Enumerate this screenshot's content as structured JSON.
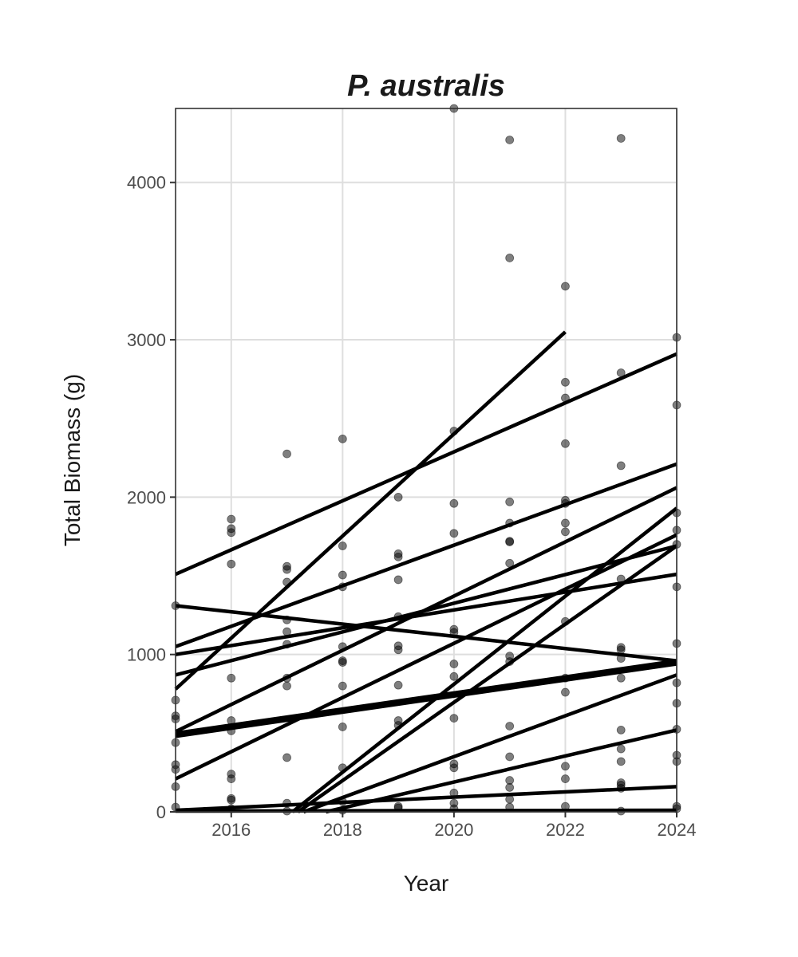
{
  "chart_data": {
    "type": "scatter",
    "title": "P. australis",
    "xlabel": "Year",
    "ylabel": "Total Biomass (g)",
    "xlim": [
      2015,
      2024
    ],
    "ylim": [
      0,
      4470
    ],
    "x_ticks": [
      2016,
      2018,
      2020,
      2022,
      2024
    ],
    "y_ticks": [
      0,
      1000,
      2000,
      3000,
      4000
    ],
    "grid": true,
    "legend": "none",
    "points": [
      {
        "x": 2015,
        "y": 1310
      },
      {
        "x": 2015,
        "y": 710
      },
      {
        "x": 2015,
        "y": 610
      },
      {
        "x": 2015,
        "y": 590
      },
      {
        "x": 2015,
        "y": 440
      },
      {
        "x": 2015,
        "y": 300
      },
      {
        "x": 2015,
        "y": 270
      },
      {
        "x": 2015,
        "y": 160
      },
      {
        "x": 2015,
        "y": 30
      },
      {
        "x": 2016,
        "y": 1860
      },
      {
        "x": 2016,
        "y": 1800
      },
      {
        "x": 2016,
        "y": 1775
      },
      {
        "x": 2016,
        "y": 1575
      },
      {
        "x": 2016,
        "y": 850
      },
      {
        "x": 2016,
        "y": 580
      },
      {
        "x": 2016,
        "y": 515
      },
      {
        "x": 2016,
        "y": 240
      },
      {
        "x": 2016,
        "y": 210
      },
      {
        "x": 2016,
        "y": 85
      },
      {
        "x": 2016,
        "y": 75
      },
      {
        "x": 2016,
        "y": 20
      },
      {
        "x": 2017,
        "y": 2275
      },
      {
        "x": 2017,
        "y": 1560
      },
      {
        "x": 2017,
        "y": 1540
      },
      {
        "x": 2017,
        "y": 1460
      },
      {
        "x": 2017,
        "y": 1220
      },
      {
        "x": 2017,
        "y": 1145
      },
      {
        "x": 2017,
        "y": 1065
      },
      {
        "x": 2017,
        "y": 850
      },
      {
        "x": 2017,
        "y": 800
      },
      {
        "x": 2017,
        "y": 345
      },
      {
        "x": 2017,
        "y": 55
      },
      {
        "x": 2017,
        "y": 5
      },
      {
        "x": 2018,
        "y": 2370
      },
      {
        "x": 2018,
        "y": 1690
      },
      {
        "x": 2018,
        "y": 1505
      },
      {
        "x": 2018,
        "y": 1430
      },
      {
        "x": 2018,
        "y": 1050
      },
      {
        "x": 2018,
        "y": 960
      },
      {
        "x": 2018,
        "y": 950
      },
      {
        "x": 2018,
        "y": 800
      },
      {
        "x": 2018,
        "y": 540
      },
      {
        "x": 2018,
        "y": 280
      },
      {
        "x": 2018,
        "y": 65
      },
      {
        "x": 2018,
        "y": 10
      },
      {
        "x": 2019,
        "y": 2000
      },
      {
        "x": 2019,
        "y": 1640
      },
      {
        "x": 2019,
        "y": 1620
      },
      {
        "x": 2019,
        "y": 1475
      },
      {
        "x": 2019,
        "y": 1240
      },
      {
        "x": 2019,
        "y": 1055
      },
      {
        "x": 2019,
        "y": 1030
      },
      {
        "x": 2019,
        "y": 805
      },
      {
        "x": 2019,
        "y": 580
      },
      {
        "x": 2019,
        "y": 550
      },
      {
        "x": 2019,
        "y": 35
      },
      {
        "x": 2019,
        "y": 25
      },
      {
        "x": 2020,
        "y": 4470
      },
      {
        "x": 2020,
        "y": 2420
      },
      {
        "x": 2020,
        "y": 1960
      },
      {
        "x": 2020,
        "y": 1770
      },
      {
        "x": 2020,
        "y": 1160
      },
      {
        "x": 2020,
        "y": 1140
      },
      {
        "x": 2020,
        "y": 940
      },
      {
        "x": 2020,
        "y": 860
      },
      {
        "x": 2020,
        "y": 595
      },
      {
        "x": 2020,
        "y": 305
      },
      {
        "x": 2020,
        "y": 280
      },
      {
        "x": 2020,
        "y": 120
      },
      {
        "x": 2020,
        "y": 55
      },
      {
        "x": 2020,
        "y": 20
      },
      {
        "x": 2021,
        "y": 4270
      },
      {
        "x": 2021,
        "y": 3520
      },
      {
        "x": 2021,
        "y": 1970
      },
      {
        "x": 2021,
        "y": 1835
      },
      {
        "x": 2021,
        "y": 1720
      },
      {
        "x": 2021,
        "y": 1715
      },
      {
        "x": 2021,
        "y": 1580
      },
      {
        "x": 2021,
        "y": 990
      },
      {
        "x": 2021,
        "y": 955
      },
      {
        "x": 2021,
        "y": 545
      },
      {
        "x": 2021,
        "y": 350
      },
      {
        "x": 2021,
        "y": 200
      },
      {
        "x": 2021,
        "y": 155
      },
      {
        "x": 2021,
        "y": 80
      },
      {
        "x": 2021,
        "y": 30
      },
      {
        "x": 2022,
        "y": 3340
      },
      {
        "x": 2022,
        "y": 2730
      },
      {
        "x": 2022,
        "y": 2630
      },
      {
        "x": 2022,
        "y": 2340
      },
      {
        "x": 2022,
        "y": 1980
      },
      {
        "x": 2022,
        "y": 1960
      },
      {
        "x": 2022,
        "y": 1835
      },
      {
        "x": 2022,
        "y": 1780
      },
      {
        "x": 2022,
        "y": 1210
      },
      {
        "x": 2022,
        "y": 850
      },
      {
        "x": 2022,
        "y": 760
      },
      {
        "x": 2022,
        "y": 290
      },
      {
        "x": 2022,
        "y": 210
      },
      {
        "x": 2022,
        "y": 35
      },
      {
        "x": 2023,
        "y": 4280
      },
      {
        "x": 2023,
        "y": 2790
      },
      {
        "x": 2023,
        "y": 2200
      },
      {
        "x": 2023,
        "y": 1480
      },
      {
        "x": 2023,
        "y": 1045
      },
      {
        "x": 2023,
        "y": 1030
      },
      {
        "x": 2023,
        "y": 975
      },
      {
        "x": 2023,
        "y": 850
      },
      {
        "x": 2023,
        "y": 520
      },
      {
        "x": 2023,
        "y": 400
      },
      {
        "x": 2023,
        "y": 320
      },
      {
        "x": 2023,
        "y": 185
      },
      {
        "x": 2023,
        "y": 170
      },
      {
        "x": 2023,
        "y": 150
      },
      {
        "x": 2023,
        "y": 5
      },
      {
        "x": 2024,
        "y": 3015
      },
      {
        "x": 2024,
        "y": 2585
      },
      {
        "x": 2024,
        "y": 1900
      },
      {
        "x": 2024,
        "y": 1790
      },
      {
        "x": 2024,
        "y": 1700
      },
      {
        "x": 2024,
        "y": 1430
      },
      {
        "x": 2024,
        "y": 1070
      },
      {
        "x": 2024,
        "y": 820
      },
      {
        "x": 2024,
        "y": 690
      },
      {
        "x": 2024,
        "y": 525
      },
      {
        "x": 2024,
        "y": 360
      },
      {
        "x": 2024,
        "y": 320
      },
      {
        "x": 2024,
        "y": 35
      },
      {
        "x": 2024,
        "y": 20
      }
    ],
    "lines": [
      {
        "x": [
          2015,
          2024
        ],
        "y": [
          1510,
          2910
        ]
      },
      {
        "x": [
          2015,
          2022
        ],
        "y": [
          780,
          3050
        ]
      },
      {
        "x": [
          2015,
          2024
        ],
        "y": [
          1050,
          2210
        ]
      },
      {
        "x": [
          2015,
          2024
        ],
        "y": [
          1310,
          960
        ]
      },
      {
        "x": [
          2015,
          2024
        ],
        "y": [
          1000,
          1510
        ]
      },
      {
        "x": [
          2015,
          2024
        ],
        "y": [
          870,
          1690
        ]
      },
      {
        "x": [
          2015,
          2024
        ],
        "y": [
          510,
          2060
        ]
      },
      {
        "x": [
          2015,
          2024
        ],
        "y": [
          500,
          960
        ]
      },
      {
        "x": [
          2015,
          2024
        ],
        "y": [
          480,
          940
        ]
      },
      {
        "x": [
          2015,
          2024
        ],
        "y": [
          210,
          1760
        ]
      },
      {
        "x": [
          2017.1,
          2024
        ],
        "y": [
          0,
          1930
        ]
      },
      {
        "x": [
          2017.2,
          2024
        ],
        "y": [
          0,
          1690
        ]
      },
      {
        "x": [
          2017.3,
          2024
        ],
        "y": [
          0,
          870
        ]
      },
      {
        "x": [
          2017.7,
          2024
        ],
        "y": [
          0,
          520
        ]
      },
      {
        "x": [
          2015,
          2024
        ],
        "y": [
          10,
          160
        ]
      },
      {
        "x": [
          2015,
          2024
        ],
        "y": [
          5,
          10
        ]
      }
    ]
  }
}
